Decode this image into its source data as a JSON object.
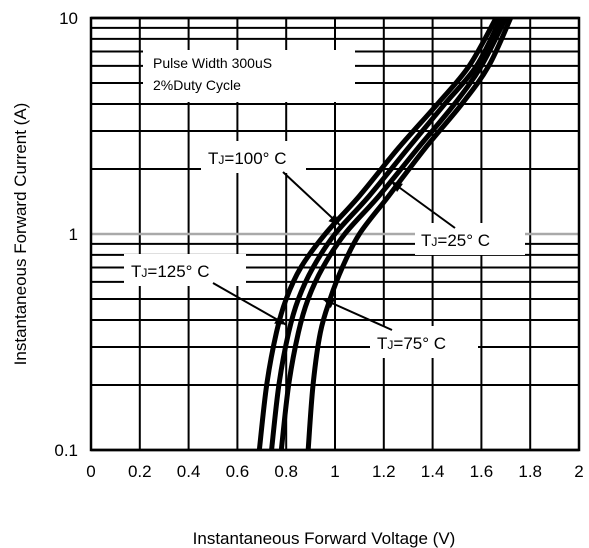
{
  "chart_data": {
    "type": "line",
    "xlabel": "Instantaneous Forward Voltage (V)",
    "ylabel": "Instantaneous Forward Current (A)",
    "xlim": [
      0,
      2
    ],
    "ylim": [
      0.1,
      10
    ],
    "y_scale": "log",
    "grid": true,
    "x_ticks": [
      "0",
      "0.2",
      "0.4",
      "0.6",
      "0.8",
      "1",
      "1.2",
      "1.4",
      "1.6",
      "1.8",
      "2"
    ],
    "y_ticks": [
      "0.1",
      "1",
      "10"
    ],
    "note_lines": [
      "Pulse Width 300uS",
      "2%Duty Cycle"
    ],
    "series": [
      {
        "name": "TJ=125° C",
        "points": [
          [
            0.69,
            0.1
          ],
          [
            0.72,
            0.2
          ],
          [
            0.76,
            0.35
          ],
          [
            0.8,
            0.5
          ],
          [
            0.86,
            0.7
          ],
          [
            0.96,
            1.0
          ],
          [
            1.1,
            1.5
          ],
          [
            1.26,
            2.5
          ],
          [
            1.42,
            4.0
          ],
          [
            1.55,
            6.0
          ],
          [
            1.66,
            10
          ]
        ]
      },
      {
        "name": "TJ=100° C",
        "points": [
          [
            0.74,
            0.1
          ],
          [
            0.77,
            0.2
          ],
          [
            0.81,
            0.35
          ],
          [
            0.85,
            0.5
          ],
          [
            0.91,
            0.7
          ],
          [
            1.0,
            1.0
          ],
          [
            1.14,
            1.5
          ],
          [
            1.3,
            2.5
          ],
          [
            1.45,
            4.0
          ],
          [
            1.58,
            6.0
          ],
          [
            1.68,
            10
          ]
        ]
      },
      {
        "name": "TJ=75° C",
        "points": [
          [
            0.78,
            0.1
          ],
          [
            0.81,
            0.2
          ],
          [
            0.85,
            0.35
          ],
          [
            0.89,
            0.5
          ],
          [
            0.95,
            0.7
          ],
          [
            1.04,
            1.0
          ],
          [
            1.18,
            1.5
          ],
          [
            1.34,
            2.5
          ],
          [
            1.49,
            4.0
          ],
          [
            1.6,
            6.0
          ],
          [
            1.7,
            10
          ]
        ]
      },
      {
        "name": "TJ=25° C",
        "points": [
          [
            0.89,
            0.1
          ],
          [
            0.91,
            0.2
          ],
          [
            0.94,
            0.35
          ],
          [
            0.98,
            0.5
          ],
          [
            1.03,
            0.7
          ],
          [
            1.1,
            1.0
          ],
          [
            1.22,
            1.5
          ],
          [
            1.37,
            2.5
          ],
          [
            1.52,
            4.0
          ],
          [
            1.63,
            6.0
          ],
          [
            1.72,
            10
          ]
        ]
      }
    ],
    "annotations": [
      {
        "main": "T",
        "sub": "J",
        "rest": "=100° C",
        "point": [
          1.02,
          1.1
        ]
      },
      {
        "main": "T",
        "sub": "J",
        "rest": "=25° C",
        "point": [
          1.23,
          1.75
        ]
      },
      {
        "main": "T",
        "sub": "J",
        "rest": "=125° C",
        "point": [
          0.8,
          0.38
        ]
      },
      {
        "main": "T",
        "sub": "J",
        "rest": "=75° C",
        "point": [
          0.95,
          0.5
        ]
      }
    ]
  }
}
